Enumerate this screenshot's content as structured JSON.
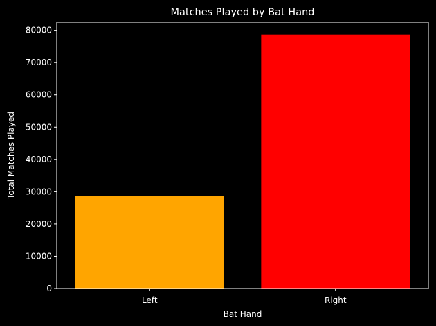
{
  "chart_data": {
    "type": "bar",
    "title": "Matches Played by Bat Hand",
    "xlabel": "Bat Hand",
    "ylabel": "Total Matches Played",
    "categories": [
      "Left",
      "Right"
    ],
    "values": [
      28700,
      78700
    ],
    "bar_colors": [
      "#ffa500",
      "#ff0000"
    ],
    "ylim": [
      0,
      82500
    ],
    "yticks": [
      0,
      10000,
      20000,
      30000,
      40000,
      50000,
      60000,
      70000,
      80000
    ],
    "ytick_labels": [
      "0",
      "10000",
      "20000",
      "30000",
      "40000",
      "50000",
      "60000",
      "70000",
      "80000"
    ],
    "grid": false,
    "legend": "none",
    "background_color": "#000000",
    "foreground_color": "#ffffff"
  }
}
